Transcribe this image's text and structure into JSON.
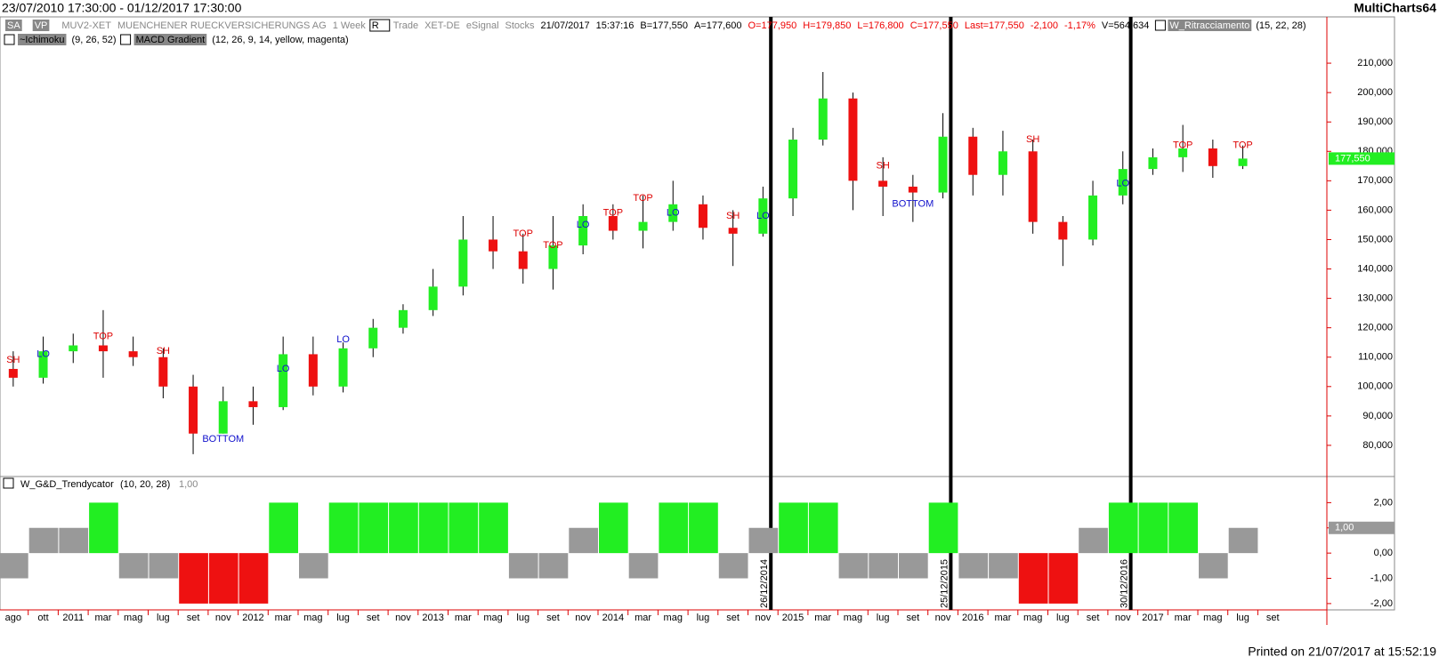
{
  "header": {
    "range": "23/07/2010 17:30:00 - 01/12/2017 17:30:00",
    "app": "MultiCharts64",
    "toolbar": [
      "SA",
      "VP",
      "MUV2-XET",
      "MUENCHENER RUECKVERSICHERUNGS AG",
      "1 Week",
      "R",
      "Trade",
      "XET-DE",
      "eSignal",
      "Stocks",
      "21/07/2017",
      "15:37:16",
      "B=177,550",
      "A=177,600",
      "O=177,950",
      "H=179,850",
      "L=176,800",
      "C=177,550",
      "Last=177,550",
      "-2,100",
      "-1,17%",
      "V=564.634",
      "W_Ritracciamento",
      "(15, 22, 28)"
    ],
    "studies": [
      "~Ichimoku",
      "(9, 26, 52)",
      "MACD Gradient",
      "(12, 26, 9, 14, yellow, magenta)"
    ]
  },
  "footer": "Printed on 21/07/2017 at 15:52:19",
  "chart_data": [
    {
      "type": "candlestick",
      "up_color": "#22ee22",
      "down_color": "#ee1111",
      "categories": [
        "ago",
        "ott",
        "2011",
        "mar",
        "mag",
        "lug",
        "set",
        "nov",
        "2012",
        "mar",
        "mag",
        "lug",
        "set",
        "nov",
        "2013",
        "mar",
        "mag",
        "lug",
        "set",
        "nov",
        "2014",
        "mar",
        "mag",
        "lug",
        "set",
        "nov",
        "2015",
        "mar",
        "mag",
        "lug",
        "set",
        "nov",
        "2016",
        "mar",
        "mag",
        "lug",
        "set",
        "nov",
        "2017",
        "mar",
        "mag",
        "lug",
        "set"
      ],
      "open": [
        106000,
        103000,
        112000,
        114000,
        112000,
        110000,
        100000,
        84000,
        95000,
        93000,
        111000,
        100000,
        113000,
        120000,
        126000,
        134000,
        150000,
        146000,
        140000,
        148000,
        158000,
        153000,
        156000,
        162000,
        154000,
        152000,
        164000,
        184000,
        198000,
        170000,
        168000,
        166000,
        185000,
        172000,
        180000,
        156000,
        150000,
        165000,
        174000,
        178000,
        181000,
        175000,
        null
      ],
      "high": [
        112000,
        117000,
        118000,
        126000,
        117000,
        113000,
        104000,
        100000,
        100000,
        117000,
        117000,
        115000,
        123000,
        128000,
        140000,
        158000,
        158000,
        152000,
        158000,
        162000,
        162000,
        165000,
        170000,
        165000,
        160000,
        168000,
        188000,
        207000,
        200000,
        178000,
        172000,
        193000,
        188000,
        187000,
        184000,
        158000,
        170000,
        180000,
        181000,
        189000,
        184000,
        182000,
        null
      ],
      "low": [
        100000,
        101000,
        108000,
        103000,
        107000,
        96000,
        77000,
        84000,
        87000,
        92000,
        97000,
        98000,
        110000,
        118000,
        124000,
        131000,
        140000,
        135000,
        133000,
        145000,
        150000,
        147000,
        153000,
        150000,
        141000,
        151000,
        158000,
        182000,
        160000,
        158000,
        156000,
        164000,
        165000,
        165000,
        152000,
        141000,
        148000,
        162000,
        172000,
        173000,
        171000,
        174000,
        null
      ],
      "close": [
        103000,
        112000,
        114000,
        112000,
        110000,
        100000,
        84000,
        95000,
        93000,
        111000,
        100000,
        113000,
        120000,
        126000,
        134000,
        150000,
        146000,
        140000,
        148000,
        158000,
        153000,
        156000,
        162000,
        154000,
        152000,
        164000,
        184000,
        198000,
        170000,
        168000,
        166000,
        185000,
        172000,
        180000,
        156000,
        150000,
        165000,
        174000,
        178000,
        181000,
        175000,
        177550,
        null
      ],
      "annotations": [
        {
          "text": "SH",
          "value": 109000,
          "color": "#dd0000"
        },
        {
          "text": "LO",
          "value": 111000,
          "color": "#1111cc"
        },
        null,
        {
          "text": "TOP",
          "value": 117000,
          "color": "#dd0000"
        },
        null,
        {
          "text": "SH",
          "value": 112000,
          "color": "#dd0000"
        },
        null,
        {
          "text": "BOTTOM",
          "value": 82000,
          "color": "#1111cc"
        },
        null,
        {
          "text": "LO",
          "value": 106000,
          "color": "#1111cc"
        },
        null,
        {
          "text": "LO",
          "value": 116000,
          "color": "#1111cc"
        },
        null,
        null,
        null,
        null,
        null,
        {
          "text": "TOP",
          "value": 152000,
          "color": "#dd0000"
        },
        {
          "text": "TOP",
          "value": 148000,
          "color": "#dd0000"
        },
        {
          "text": "LO",
          "value": 155000,
          "color": "#1111cc"
        },
        {
          "text": "TOP",
          "value": 159000,
          "color": "#dd0000"
        },
        {
          "text": "TOP",
          "value": 164000,
          "color": "#dd0000"
        },
        {
          "text": "LO",
          "value": 159000,
          "color": "#1111cc"
        },
        null,
        {
          "text": "SH",
          "value": 158000,
          "color": "#dd0000"
        },
        {
          "text": "LO",
          "value": 158000,
          "color": "#1111cc"
        },
        null,
        null,
        null,
        {
          "text": "SH",
          "value": 175000,
          "color": "#dd0000"
        },
        {
          "text": "BOTTOM",
          "value": 162000,
          "color": "#1111cc"
        },
        null,
        null,
        null,
        {
          "text": "SH",
          "value": 184000,
          "color": "#dd0000"
        },
        null,
        null,
        {
          "text": "LO",
          "value": 169000,
          "color": "#1111cc"
        },
        null,
        {
          "text": "TOP",
          "value": 182000,
          "color": "#dd0000"
        },
        null,
        {
          "text": "TOP",
          "value": 182000,
          "color": "#dd0000"
        },
        null
      ],
      "separators": [
        {
          "label": "26/12/2014",
          "before": "2015"
        },
        {
          "label": "25/12/2015",
          "before": "2016"
        },
        {
          "label": "30/12/2016",
          "before": "2017"
        }
      ],
      "last_label": {
        "value": 177550,
        "label": "177,550"
      },
      "ylim": [
        70000,
        220000
      ],
      "yticks": [
        {
          "value": 80000,
          "label": "80,000"
        },
        {
          "value": 90000,
          "label": "90,000"
        },
        {
          "value": 100000,
          "label": "100,000"
        },
        {
          "value": 110000,
          "label": "110,000"
        },
        {
          "value": 120000,
          "label": "120,000"
        },
        {
          "value": 130000,
          "label": "130,000"
        },
        {
          "value": 140000,
          "label": "140,000"
        },
        {
          "value": 150000,
          "label": "150,000"
        },
        {
          "value": 160000,
          "label": "160,000"
        },
        {
          "value": 170000,
          "label": "170,000"
        },
        {
          "value": 180000,
          "label": "180,000"
        },
        {
          "value": 190000,
          "label": "190,000"
        },
        {
          "value": 200000,
          "label": "200,000"
        },
        {
          "value": 210000,
          "label": "210,000"
        }
      ]
    },
    {
      "type": "bar",
      "title": "W_G&D_Trendycator",
      "subtitle": "(10, 20, 28)",
      "up_color": "#22ee22",
      "down_color": "#ee1111",
      "neutral_color": "#999999",
      "values": [
        -1,
        1,
        1,
        2,
        -1,
        -1,
        -2,
        -2,
        -2,
        2,
        -1,
        2,
        2,
        2,
        2,
        2,
        2,
        -1,
        -1,
        1,
        2,
        -1,
        2,
        2,
        -1,
        1,
        2,
        2,
        -1,
        -1,
        -1,
        2,
        -1,
        -1,
        -2,
        -2,
        1,
        2,
        2,
        2,
        -1,
        1,
        null
      ],
      "last_label": {
        "value": 1,
        "label": "1,00"
      },
      "ylim": [
        -2.25,
        3
      ],
      "yticks": [
        {
          "value": -2,
          "label": "-2,00"
        },
        {
          "value": -1,
          "label": "-1,00"
        },
        {
          "value": 0,
          "label": "0,00"
        },
        {
          "value": 1,
          "label": "1,00"
        },
        {
          "value": 2,
          "label": "2,00"
        }
      ]
    }
  ]
}
